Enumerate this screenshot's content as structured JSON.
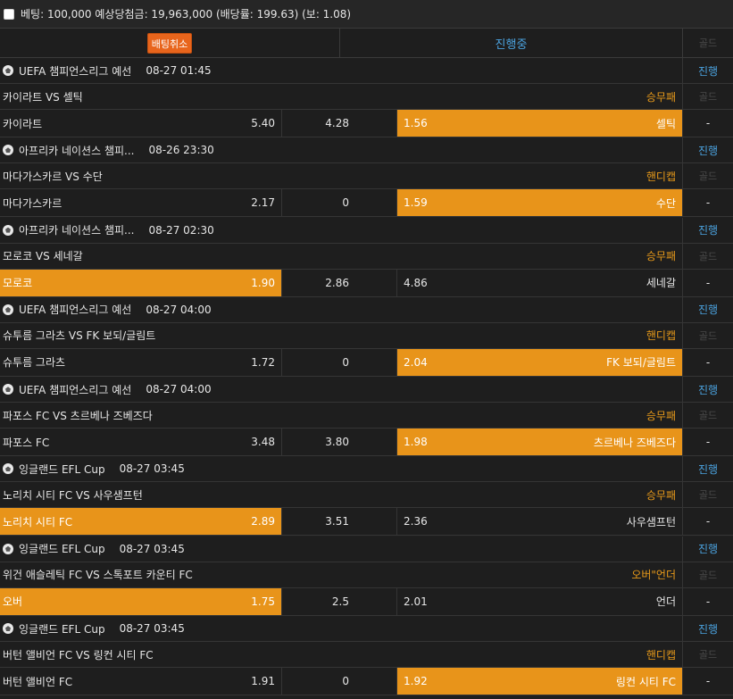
{
  "summary": {
    "text": "베팅: 100,000 예상당첨금: 19,963,000 (배당률: 199.63) (보: 1.08)"
  },
  "header": {
    "cancel_label": "배팅취소",
    "status_label": "진행중",
    "gold_label": "골드"
  },
  "colors": {
    "accent_orange": "#e8941a",
    "status_blue": "#4ba3e0",
    "cancel_orange": "#e8651c",
    "background": "#1e1e1e"
  },
  "matches": [
    {
      "league": "UEFA 챔피언스리그 예선",
      "time": "08-27 01:45",
      "status": "진행",
      "title": "카이라트 VS 셀틱",
      "bet_type": "승무패",
      "gold": "골드",
      "home": "카이라트",
      "home_odds": "5.40",
      "mid": "4.28",
      "away_odds": "1.56",
      "away": "셀틱",
      "selected": "away",
      "dash": "-"
    },
    {
      "league": "아프리카 네이션스 챔피...",
      "time": "08-26 23:30",
      "status": "진행",
      "title": "마다가스카르 VS 수단",
      "bet_type": "핸디캡",
      "gold": "골드",
      "home": "마다가스카르",
      "home_odds": "2.17",
      "mid": "0",
      "away_odds": "1.59",
      "away": "수단",
      "selected": "away",
      "dash": "-"
    },
    {
      "league": "아프리카 네이션스 챔피...",
      "time": "08-27 02:30",
      "status": "진행",
      "title": "모로코 VS 세네갈",
      "bet_type": "승무패",
      "gold": "골드",
      "home": "모로코",
      "home_odds": "1.90",
      "mid": "2.86",
      "away_odds": "4.86",
      "away": "세네갈",
      "selected": "home",
      "dash": "-"
    },
    {
      "league": "UEFA 챔피언스리그 예선",
      "time": "08-27 04:00",
      "status": "진행",
      "title": "슈투름 그라츠 VS FK 보되/글림트",
      "bet_type": "핸디캡",
      "gold": "골드",
      "home": "슈투름 그라츠",
      "home_odds": "1.72",
      "mid": "0",
      "away_odds": "2.04",
      "away": "FK 보되/글림트",
      "selected": "away",
      "dash": "-"
    },
    {
      "league": "UEFA 챔피언스리그 예선",
      "time": "08-27 04:00",
      "status": "진행",
      "title": "파포스 FC VS 츠르베나 즈베즈다",
      "bet_type": "승무패",
      "gold": "골드",
      "home": "파포스 FC",
      "home_odds": "3.48",
      "mid": "3.80",
      "away_odds": "1.98",
      "away": "츠르베나 즈베즈다",
      "selected": "away",
      "dash": "-"
    },
    {
      "league": "잉글랜드 EFL Cup",
      "time": "08-27 03:45",
      "status": "진행",
      "title": "노리치 시티 FC VS 사우샘프턴",
      "bet_type": "승무패",
      "gold": "골드",
      "home": "노리치 시티 FC",
      "home_odds": "2.89",
      "mid": "3.51",
      "away_odds": "2.36",
      "away": "사우샘프턴",
      "selected": "home",
      "dash": "-"
    },
    {
      "league": "잉글랜드 EFL Cup",
      "time": "08-27 03:45",
      "status": "진행",
      "title": "위건 애슬레틱 FC VS 스톡포트 카운티 FC",
      "bet_type": "오버\"언더",
      "gold": "골드",
      "home": "오버",
      "home_odds": "1.75",
      "mid": "2.5",
      "away_odds": "2.01",
      "away": "언더",
      "selected": "home",
      "dash": "-"
    },
    {
      "league": "잉글랜드 EFL Cup",
      "time": "08-27 03:45",
      "status": "진행",
      "title": "버턴 앨비언 FC VS 링컨 시티 FC",
      "bet_type": "핸디캡",
      "gold": "골드",
      "home": "버턴 앨비언 FC",
      "home_odds": "1.91",
      "mid": "0",
      "away_odds": "1.92",
      "away": "링컨 시티 FC",
      "selected": "away",
      "dash": "-"
    }
  ]
}
